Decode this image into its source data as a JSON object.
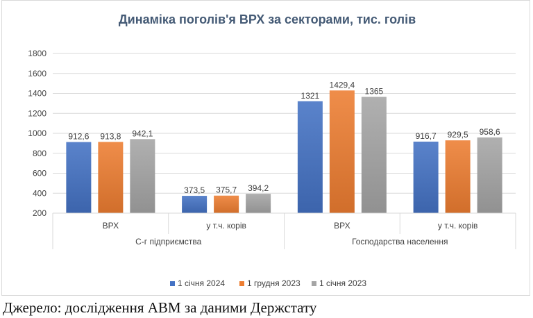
{
  "chart_data": {
    "type": "bar",
    "title": "Динаміка поголів'я ВРХ за секторами, тис. голів",
    "groups": [
      {
        "label": "С-г підприємства",
        "categories": [
          "ВРХ",
          "у т.ч. корів"
        ]
      },
      {
        "label": "Господарства населення",
        "categories": [
          "ВРХ",
          "у т.ч. корів"
        ]
      }
    ],
    "categories": [
      "ВРХ",
      "у т.ч. корів",
      "ВРХ",
      "у т.ч. корів"
    ],
    "series": [
      {
        "name": "1 січня 2024",
        "color": "#4472c4",
        "values": [
          912.6,
          373.5,
          1321,
          916.7
        ],
        "labels": [
          "912,6",
          "373,5",
          "1321",
          "916,7"
        ]
      },
      {
        "name": "1 грудня 2023",
        "color": "#ed7d31",
        "values": [
          913.8,
          375.7,
          1429.4,
          929.5
        ],
        "labels": [
          "913,8",
          "375,7",
          "1429,4",
          "929,5"
        ]
      },
      {
        "name": "1 січня 2023",
        "color": "#a5a5a5",
        "values": [
          942.1,
          394.2,
          1365,
          958.6
        ],
        "labels": [
          "942,1",
          "394,2",
          "1365",
          "958,6"
        ]
      }
    ],
    "ylim": [
      200,
      1800
    ],
    "yticks": [
      "200",
      "400",
      "600",
      "800",
      "1000",
      "1200",
      "1400",
      "1600",
      "1800"
    ],
    "grid": true,
    "legend_position": "bottom"
  },
  "source_note": "Джерело: дослідження АВМ за даними Держстату"
}
